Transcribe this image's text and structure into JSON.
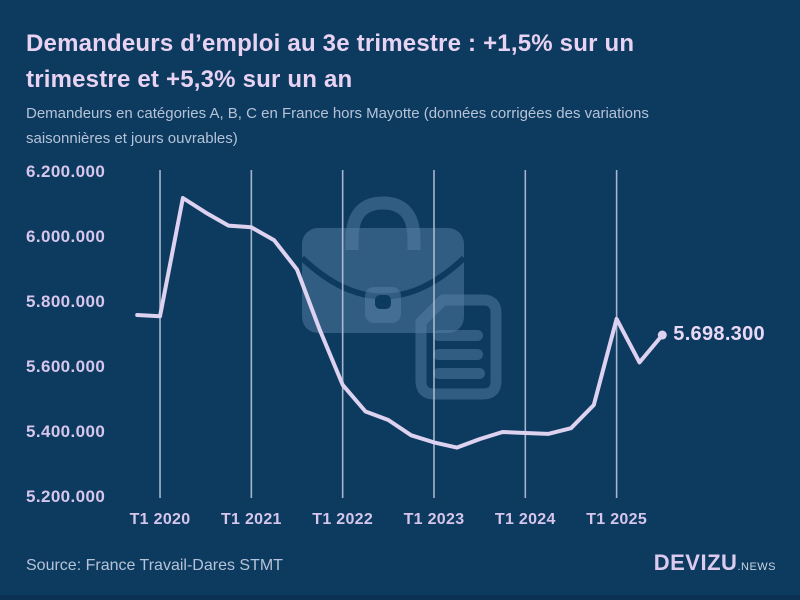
{
  "header": {
    "title": "Demandeurs d’emploi au 3e trimestre : +1,5% sur un trimestre et +5,3% sur un an",
    "subtitle": "Demandeurs en catégories A, B, C en France hors Mayotte (données corrigées des variations saisonnières et jours ouvrables)"
  },
  "footer": {
    "source": "Source: France Travail-Dares STMT",
    "logo_main": "DEVIZU",
    "logo_suffix": ".NEWS"
  },
  "colors": {
    "background": "#0d3a5f",
    "title": "#e8d3f2",
    "subtitle": "#b5c3d8",
    "tick_labels": "#d6c6ec",
    "line": "#ded2f1",
    "gridline": "#b8c3d8",
    "end_label": "#ead9f6",
    "watermark": "#335d82"
  },
  "chart_data": {
    "type": "line",
    "x": [
      "T4 2019",
      "T1 2020",
      "T2 2020",
      "T3 2020",
      "T4 2020",
      "T1 2021",
      "T2 2021",
      "T3 2021",
      "T4 2021",
      "T1 2022",
      "T2 2022",
      "T3 2022",
      "T4 2022",
      "T1 2023",
      "T2 2023",
      "T3 2023",
      "T4 2023",
      "T1 2024",
      "T2 2024",
      "T3 2024",
      "T4 2024",
      "T1 2025",
      "T2 2025",
      "T3 2025"
    ],
    "values": [
      5760000,
      5756000,
      6120000,
      6075000,
      6035000,
      6030000,
      5990000,
      5900000,
      5714000,
      5545000,
      5463000,
      5437000,
      5390000,
      5368000,
      5352000,
      5378000,
      5400000,
      5397000,
      5394000,
      5411600,
      5483000,
      5748000,
      5614000,
      5698300
    ],
    "x_ticks": [
      "T1 2020",
      "T1 2021",
      "T1 2022",
      "T1 2023",
      "T1 2024",
      "T1 2025"
    ],
    "y_ticks": [
      "6.200.000",
      "6.000.000",
      "5.800.000",
      "5.600.000",
      "5.400.000",
      "5.200.000"
    ],
    "y_tick_values": [
      6200000,
      6000000,
      5800000,
      5600000,
      5400000,
      5200000
    ],
    "ylim": [
      5200000,
      6200000
    ],
    "grid": "vertical-only",
    "legend": "none",
    "line_color": "#ded2f1",
    "end_label": "5.698.300",
    "end_value": 5698300
  }
}
